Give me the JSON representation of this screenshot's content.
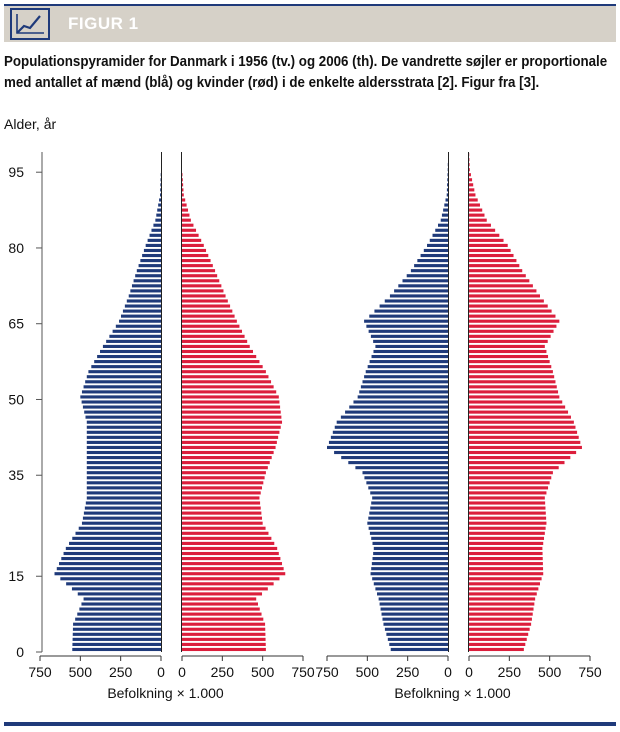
{
  "header": {
    "figure_label": "FIGUR 1",
    "logo_icon": "line-chart-icon"
  },
  "caption": "Populationspyramider for Danmark i 1956 (tv.) og 2006 (th). De vandrette søjler er proportionale med antallet af mænd (blå) og kvinder (rød) i de enkelte aldersstrata [2]. Figur fra [3].",
  "colors": {
    "men": "#1f3a7a",
    "women": "#dc1e3c",
    "accent": "#1f3a7a"
  },
  "chart_data": {
    "type": "bar",
    "orientation": "horizontal",
    "ylabel": "Alder, år",
    "y_ticks": [
      0,
      15,
      35,
      50,
      65,
      80,
      95
    ],
    "ylim": [
      0,
      99
    ],
    "x_ticks": [
      750,
      500,
      250,
      0
    ],
    "x_ticks_right": [
      0,
      250,
      500,
      750
    ],
    "xlim": [
      0,
      750
    ],
    "xlabel": "Befolkning × 1.000",
    "panels": [
      {
        "year": "1956",
        "men": {
          "ages": [
            0,
            5,
            10,
            15,
            20,
            25,
            30,
            35,
            40,
            45,
            50,
            55,
            60,
            65,
            70,
            75,
            80,
            85,
            90,
            95
          ],
          "values": [
            550,
            545,
            480,
            660,
            590,
            490,
            460,
            460,
            460,
            460,
            500,
            450,
            360,
            260,
            200,
            150,
            95,
            35,
            6,
            1
          ]
        },
        "women": {
          "ages": [
            0,
            5,
            10,
            15,
            20,
            25,
            30,
            35,
            40,
            45,
            50,
            55,
            60,
            65,
            70,
            75,
            80,
            85,
            90,
            95
          ],
          "values": [
            520,
            515,
            460,
            640,
            590,
            500,
            480,
            520,
            580,
            620,
            600,
            520,
            420,
            340,
            270,
            205,
            135,
            55,
            11,
            1
          ]
        }
      },
      {
        "year": "2006",
        "men": {
          "ages": [
            0,
            5,
            10,
            15,
            20,
            25,
            30,
            35,
            40,
            45,
            50,
            55,
            60,
            65,
            70,
            75,
            80,
            85,
            90,
            95
          ],
          "values": [
            355,
            400,
            430,
            480,
            460,
            500,
            470,
            530,
            750,
            690,
            560,
            510,
            450,
            520,
            360,
            230,
            130,
            45,
            8,
            2
          ]
        },
        "women": {
          "ages": [
            0,
            5,
            10,
            15,
            20,
            25,
            30,
            35,
            40,
            45,
            50,
            55,
            60,
            65,
            70,
            75,
            80,
            85,
            90,
            95
          ],
          "values": [
            340,
            385,
            410,
            460,
            455,
            480,
            470,
            520,
            700,
            650,
            560,
            520,
            470,
            560,
            440,
            330,
            240,
            110,
            40,
            5
          ]
        }
      }
    ]
  }
}
